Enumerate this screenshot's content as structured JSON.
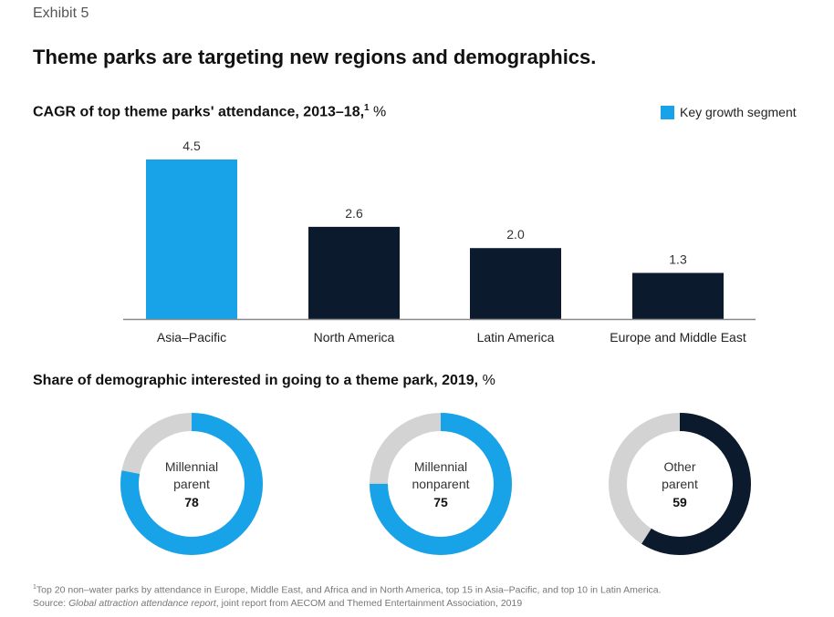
{
  "exhibit_label": "Exhibit 5",
  "title": "Theme parks are targeting new regions and demographics.",
  "colors": {
    "highlight": "#18a3e8",
    "dark": "#0b1a2c",
    "track": "#d3d3d3",
    "axis": "#888888"
  },
  "chart_data": [
    {
      "type": "bar",
      "title": "CAGR of top theme parks' attendance, 2013–18,",
      "title_footnote_marker": "1",
      "title_unit": " %",
      "xlabel": "",
      "ylabel": "",
      "categories": [
        "Asia–Pacific",
        "North America",
        "Latin America",
        "Europe and Middle East"
      ],
      "values": [
        4.5,
        2.6,
        2.0,
        1.3
      ],
      "value_labels": [
        "4.5",
        "2.6",
        "2.0",
        "1.3"
      ],
      "highlighted": [
        true,
        false,
        false,
        false
      ],
      "ylim": [
        0,
        4.5
      ],
      "grid": false,
      "legend": {
        "placement": "top-right",
        "entries": [
          {
            "label": "Key growth segment",
            "color": "#18a3e8"
          }
        ]
      }
    },
    {
      "type": "pie",
      "subtype": "donut",
      "title": "Share of demographic interested in going to a theme park, 2019,",
      "title_unit": " %",
      "items": [
        {
          "label_line1": "Millennial",
          "label_line2": "parent",
          "value": 78,
          "value_label": "78",
          "color": "#18a3e8"
        },
        {
          "label_line1": "Millennial",
          "label_line2": "nonparent",
          "value": 75,
          "value_label": "75",
          "color": "#18a3e8"
        },
        {
          "label_line1": "Other",
          "label_line2": "parent",
          "value": 59,
          "value_label": "59",
          "color": "#0b1a2c"
        }
      ],
      "max": 100
    }
  ],
  "footnote": {
    "marker": "1",
    "note": "Top 20 non–water parks by attendance in Europe, Middle East, and Africa and in North America, top 15 in Asia–Pacific, and top 10 in Latin America.",
    "source_prefix": "Source: ",
    "source_title": "Global attraction attendance report",
    "source_rest": ", joint report from AECOM and Themed Entertainment Association, 2019"
  }
}
